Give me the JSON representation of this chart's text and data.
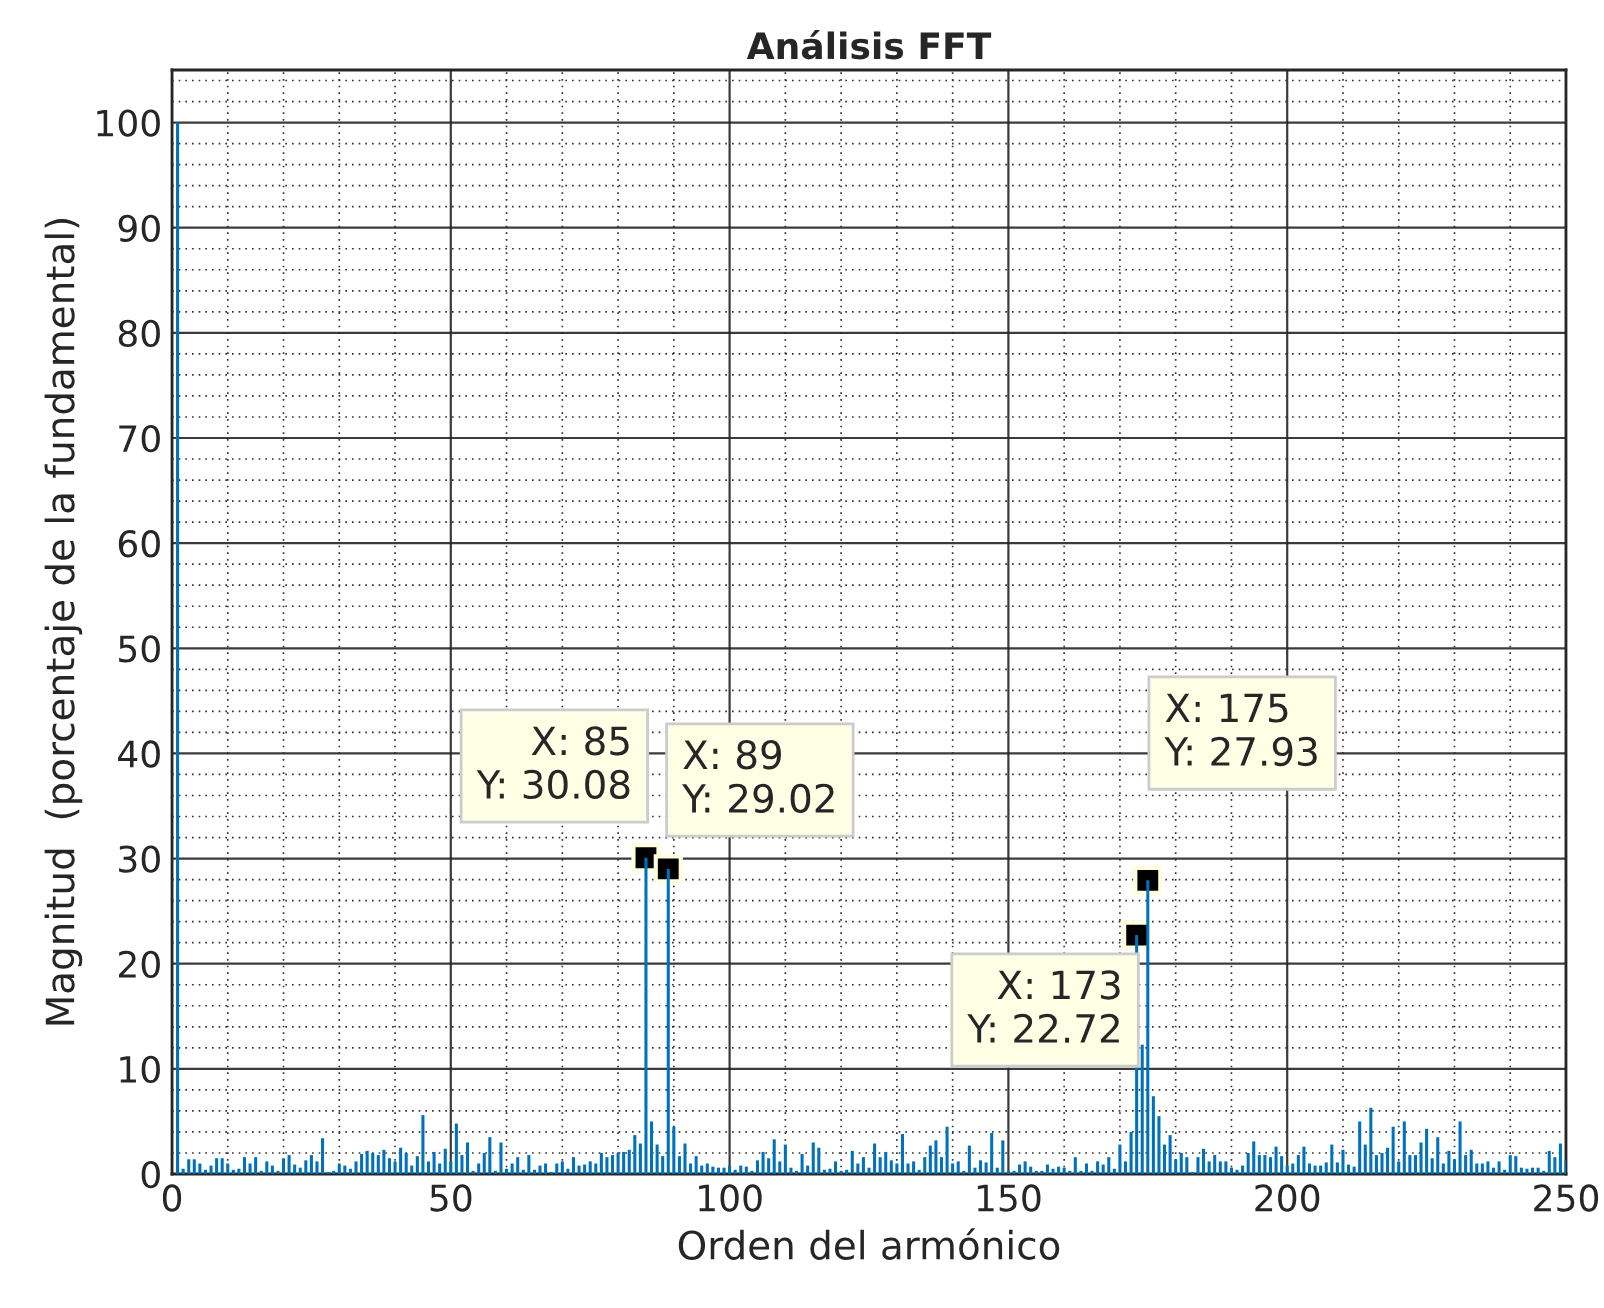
{
  "chart_data": {
    "type": "bar",
    "title": "Análisis FFT",
    "xlabel": "Orden del armónico",
    "ylabel": "Magnitud  (porcentaje de la fundamental)",
    "x": [
      1,
      2,
      3,
      4,
      5,
      6,
      7,
      8,
      9,
      10,
      11,
      12,
      13,
      14,
      15,
      16,
      17,
      18,
      19,
      20,
      21,
      22,
      23,
      24,
      25,
      26,
      27,
      28,
      29,
      30,
      31,
      32,
      33,
      34,
      35,
      36,
      37,
      38,
      39,
      40,
      41,
      42,
      43,
      44,
      45,
      46,
      47,
      48,
      49,
      50,
      51,
      52,
      53,
      54,
      55,
      56,
      57,
      58,
      59,
      60,
      61,
      62,
      63,
      64,
      65,
      66,
      67,
      68,
      69,
      70,
      71,
      72,
      73,
      74,
      75,
      76,
      77,
      78,
      79,
      80,
      81,
      82,
      83,
      84,
      85,
      86,
      87,
      88,
      89,
      90,
      91,
      92,
      93,
      94,
      95,
      96,
      97,
      98,
      99,
      100,
      101,
      102,
      103,
      104,
      105,
      106,
      107,
      108,
      109,
      110,
      111,
      112,
      113,
      114,
      115,
      116,
      117,
      118,
      119,
      120,
      121,
      122,
      123,
      124,
      125,
      126,
      127,
      128,
      129,
      130,
      131,
      132,
      133,
      134,
      135,
      136,
      137,
      138,
      139,
      140,
      141,
      142,
      143,
      144,
      145,
      146,
      147,
      148,
      149,
      150,
      151,
      152,
      153,
      154,
      155,
      156,
      157,
      158,
      159,
      160,
      161,
      162,
      163,
      164,
      165,
      166,
      167,
      168,
      169,
      170,
      171,
      172,
      173,
      174,
      175,
      176,
      177,
      178,
      179,
      180,
      181,
      182,
      183,
      184,
      185,
      186,
      187,
      188,
      189,
      190,
      191,
      192,
      193,
      194,
      195,
      196,
      197,
      198,
      199,
      200,
      201,
      202,
      203,
      204,
      205,
      206,
      207,
      208,
      209,
      210,
      211,
      212,
      213,
      214,
      215,
      216,
      217,
      218,
      219,
      220,
      221,
      222,
      223,
      224,
      225,
      226,
      227,
      228,
      229,
      230,
      231,
      232,
      233,
      234,
      235,
      236,
      237,
      238,
      239,
      240,
      241,
      242,
      243,
      244,
      245,
      246,
      247,
      248,
      249,
      250
    ],
    "series": [
      {
        "color": "#0072bd",
        "values": [
          100,
          0.5,
          1.4,
          1.4,
          1.0,
          0.4,
          0.8,
          1.5,
          1.5,
          1.0,
          0.4,
          0.5,
          1.6,
          1.0,
          1.6,
          0.3,
          1.2,
          0.8,
          0.3,
          1.5,
          1.8,
          0.9,
          0.6,
          1.3,
          1.8,
          1.2,
          3.4,
          0.2,
          0.3,
          1.0,
          0.8,
          0.5,
          1.2,
          1.9,
          2.2,
          2.0,
          1.8,
          2.3,
          1.5,
          1.2,
          2.5,
          2.0,
          0.8,
          1.7,
          5.6,
          1.2,
          2.1,
          1.0,
          2.4,
          1.2,
          4.8,
          1.8,
          3.0,
          0.3,
          1.0,
          2.0,
          3.5,
          0.3,
          3.0,
          0.5,
          1.0,
          1.6,
          0.4,
          1.8,
          0.4,
          0.8,
          1.0,
          0.2,
          1.0,
          1.2,
          0.5,
          1.6,
          0.8,
          0.9,
          1.2,
          1.0,
          2.0,
          1.6,
          1.8,
          2.0,
          2.1,
          2.3,
          3.7,
          2.9,
          30.08,
          5.0,
          2.8,
          1.7,
          29.02,
          4.5,
          1.7,
          2.9,
          1.0,
          1.7,
          0.8,
          1.0,
          0.7,
          0.6,
          0.6,
          0.8,
          0.4,
          0.8,
          0.7,
          0.3,
          1.3,
          2.1,
          1.5,
          3.3,
          1.2,
          2.8,
          0.6,
          0.3,
          1.9,
          0.8,
          3.0,
          2.5,
          0.4,
          0.5,
          1.2,
          0.3,
          0.4,
          2.2,
          1.0,
          1.6,
          0.6,
          2.9,
          1.6,
          2.1,
          1.3,
          1.0,
          3.8,
          1.0,
          1.2,
          0.4,
          1.6,
          2.7,
          3.2,
          1.6,
          4.5,
          1.0,
          1.2,
          0.3,
          2.7,
          0.6,
          1.3,
          1.1,
          3.9,
          0.6,
          3.2,
          0.3,
          0.3,
          0.9,
          1.2,
          0.7,
          0.3,
          0.3,
          0.9,
          0.5,
          0.7,
          0.6,
          0.3,
          1.6,
          0.3,
          1.0,
          0.3,
          1.2,
          0.9,
          1.6,
          0.5,
          2.8,
          1.2,
          4.0,
          22.72,
          12.3,
          27.93,
          7.4,
          5.5,
          2.8,
          3.7,
          1.4,
          2.0,
          1.6,
          0.2,
          1.6,
          2.4,
          1.2,
          1.8,
          1.2,
          1.2,
          0.6,
          0.4,
          0.8,
          2.0,
          3.1,
          1.8,
          1.8,
          1.6,
          2.6,
          1.7,
          0.8,
          1.0,
          1.8,
          2.6,
          1.0,
          0.8,
          0.8,
          1.1,
          2.8,
          1.1,
          2.3,
          0.9,
          0.7,
          5.0,
          2.8,
          6.3,
          1.8,
          2.0,
          2.5,
          4.5,
          1.2,
          5.0,
          1.8,
          1.8,
          3.0,
          4.3,
          1.5,
          3.5,
          1.0,
          2.2,
          1.4,
          5.0,
          1.8,
          2.3,
          1.0,
          1.0,
          1.2,
          0.6,
          1.2,
          0.4,
          1.8,
          1.7,
          0.6,
          0.5,
          0.6,
          0.6,
          0.3,
          2.2,
          1.6,
          2.9,
          1.3
        ]
      }
    ],
    "xlim": [
      0,
      250
    ],
    "ylim": [
      0,
      105
    ],
    "xticks": [
      0,
      50,
      100,
      150,
      200,
      250
    ],
    "yticks": [
      0,
      10,
      20,
      30,
      40,
      50,
      60,
      70,
      80,
      90,
      100
    ],
    "grid": true,
    "annotations": [
      {
        "text": "X: 85\nY: 30.08",
        "x": 85,
        "y": 30.08
      },
      {
        "text": "X: 89\nY: 29.02",
        "x": 89,
        "y": 29.02
      },
      {
        "text": "X: 173\nY: 22.72",
        "x": 173,
        "y": 22.72
      },
      {
        "text": "X: 175\nY: 27.93",
        "x": 175,
        "y": 27.93
      }
    ]
  }
}
